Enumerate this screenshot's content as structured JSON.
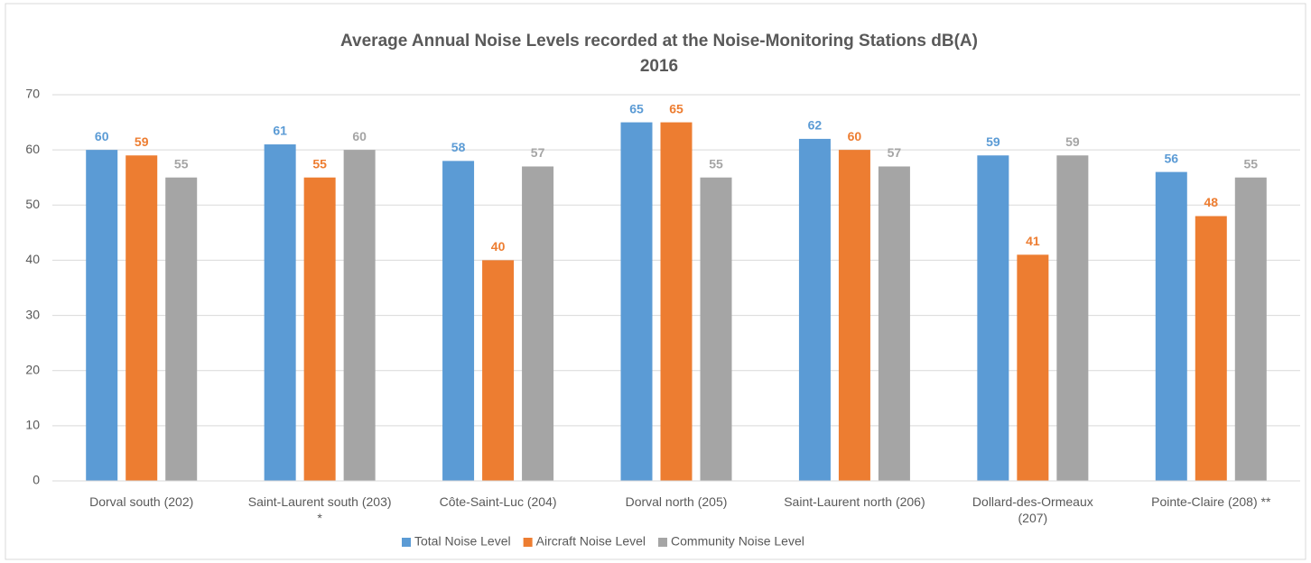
{
  "chart_data": {
    "type": "bar",
    "title": "Average Annual Noise Levels recorded at the Noise-Monitoring Stations dB(A)",
    "subtitle": "2016",
    "categories": [
      "Dorval south (202)",
      "Saint-Laurent south (203) *",
      "Côte-Saint-Luc (204)",
      "Dorval north (205)",
      "Saint-Laurent north (206)",
      "Dollard-des-Ormeaux (207)",
      "Pointe-Claire (208) **"
    ],
    "series": [
      {
        "name": "Total Noise Level",
        "color": "#5b9bd5",
        "values": [
          60,
          61,
          58,
          65,
          62,
          59,
          56
        ]
      },
      {
        "name": "Aircraft Noise Level",
        "color": "#ed7d31",
        "values": [
          59,
          55,
          40,
          65,
          60,
          41,
          48
        ]
      },
      {
        "name": "Community Noise Level",
        "color": "#a5a5a5",
        "values": [
          55,
          60,
          57,
          55,
          57,
          59,
          55
        ]
      }
    ],
    "ylim": [
      0,
      70
    ],
    "yticks": [
      0,
      10,
      20,
      30,
      40,
      50,
      60,
      70
    ],
    "grid": true,
    "legend": "bottom"
  }
}
